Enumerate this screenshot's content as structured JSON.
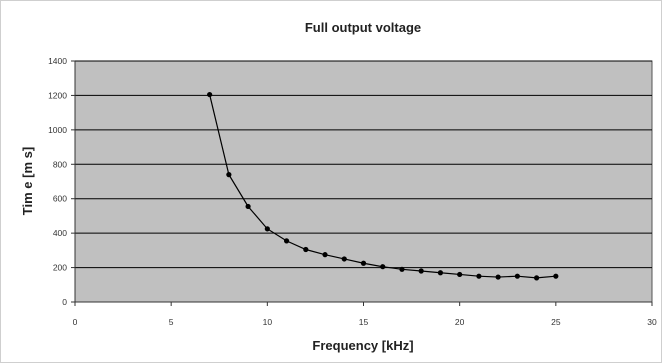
{
  "chart_data": {
    "type": "line",
    "title": "Full output voltage",
    "xlabel": "Frequency [kHz]",
    "ylabel": "Tim e [m s]",
    "xlim": [
      0,
      30
    ],
    "ylim": [
      0,
      1400
    ],
    "xticks": [
      0,
      5,
      10,
      15,
      20,
      25,
      30
    ],
    "yticks": [
      0,
      200,
      400,
      600,
      800,
      1000,
      1200,
      1400
    ],
    "xtick_labels": [
      "0",
      "5",
      "10",
      "15",
      "20",
      "25",
      "30"
    ],
    "ytick_labels": [
      "0",
      "200",
      "400",
      "600",
      "800",
      "1000",
      "1200",
      "1400"
    ],
    "grid": "horizontal",
    "plot_background": "#c0c0c0",
    "series_color": "#000000",
    "series": [
      {
        "x": [
          7,
          8,
          9,
          10,
          11,
          12,
          13,
          14,
          15,
          16,
          17,
          18,
          19,
          20,
          21,
          22,
          23,
          24,
          25
        ],
        "y": [
          1205,
          740,
          555,
          425,
          355,
          305,
          275,
          250,
          225,
          205,
          190,
          180,
          170,
          160,
          150,
          145,
          150,
          140,
          150
        ]
      }
    ]
  }
}
